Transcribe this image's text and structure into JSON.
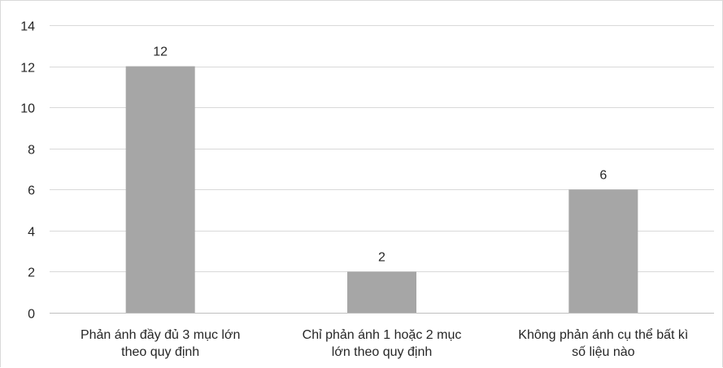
{
  "chart_data": {
    "type": "bar",
    "categories": [
      [
        "Phản ánh đầy đủ 3 mục lớn",
        "theo quy định"
      ],
      [
        "Chỉ phản ánh 1 hoặc 2 mục",
        "lớn theo quy định"
      ],
      [
        "Không phản ánh cụ thể bất kì",
        "số liệu nào"
      ]
    ],
    "values": [
      12,
      2,
      6
    ],
    "data_labels": [
      "12",
      "2",
      "6"
    ],
    "ylim": [
      0,
      14
    ],
    "yticks": [
      0,
      2,
      4,
      6,
      8,
      10,
      12,
      14
    ],
    "grid": true,
    "bar_color": "#a6a6a6",
    "grid_color": "#d9d9d9",
    "text_color": "#262626"
  }
}
